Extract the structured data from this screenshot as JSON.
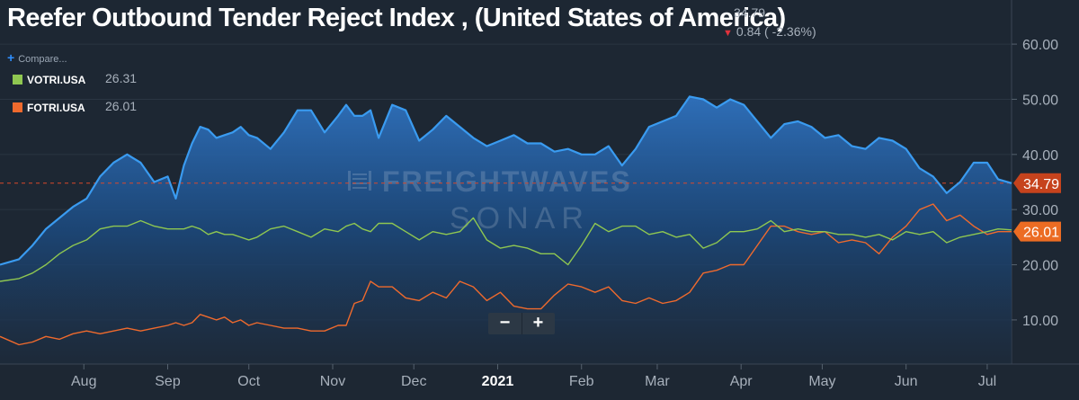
{
  "header": {
    "title": "Reefer Outbound Tender Reject Index , (United States of America)",
    "price": "34.79",
    "change": "0.84 ( -2.36%)"
  },
  "compare_label": "Compare...",
  "watermark": {
    "line1": "FREIGHTWAVES",
    "line2": "SONAR"
  },
  "zoom": {
    "minus": "−",
    "plus": "+"
  },
  "legend": [
    {
      "name": "VOTRI.USA",
      "value": "26.31",
      "color": "#8fc751"
    },
    {
      "name": "FOTRI.USA",
      "value": "26.01",
      "color": "#ef6a2d"
    }
  ],
  "colors": {
    "main": "#3a9bf0",
    "votri": "#8fc751",
    "fotri": "#ef6a2d",
    "badge": "#c6431d",
    "badge2": "#ec6c23"
  },
  "chart_data": {
    "type": "line",
    "ylim": [
      2,
      68
    ],
    "yticks": [
      10,
      20,
      30,
      40,
      50,
      60
    ],
    "ytick_labels": [
      "10.00",
      "20.00",
      "30.00",
      "40.00",
      "50.00",
      "60.00"
    ],
    "x_start": "2020-07-01",
    "xlim": [
      "2020-07-01",
      "2021-07-10"
    ],
    "xticks": [
      {
        "date": "2020-08-01",
        "label": "Aug",
        "bold": false
      },
      {
        "date": "2020-09-01",
        "label": "Sep",
        "bold": false
      },
      {
        "date": "2020-10-01",
        "label": "Oct",
        "bold": false
      },
      {
        "date": "2020-11-01",
        "label": "Nov",
        "bold": false
      },
      {
        "date": "2020-12-01",
        "label": "Dec",
        "bold": false
      },
      {
        "date": "2021-01-01",
        "label": "2021",
        "bold": true
      },
      {
        "date": "2021-02-01",
        "label": "Feb",
        "bold": false
      },
      {
        "date": "2021-03-01",
        "label": "Mar",
        "bold": false
      },
      {
        "date": "2021-04-01",
        "label": "Apr",
        "bold": false
      },
      {
        "date": "2021-05-01",
        "label": "May",
        "bold": false
      },
      {
        "date": "2021-06-01",
        "label": "Jun",
        "bold": false
      },
      {
        "date": "2021-07-01",
        "label": "Jul",
        "bold": false
      }
    ],
    "reference_line": {
      "value": 34.79,
      "label": "34.79"
    },
    "end_labels": [
      {
        "value": 34.79,
        "label": "34.79"
      },
      {
        "value": 26.01,
        "label": "26.01"
      }
    ],
    "series": [
      {
        "name": "Reefer Outbound Tender Reject Index",
        "x_days": [
          0,
          7,
          12,
          17,
          22,
          27,
          32,
          37,
          42,
          47,
          52,
          57,
          62,
          65,
          68,
          71,
          74,
          77,
          80,
          83,
          86,
          89,
          92,
          95,
          100,
          105,
          110,
          115,
          120,
          125,
          128,
          131,
          134,
          137,
          140,
          145,
          150,
          155,
          160,
          165,
          170,
          175,
          180,
          185,
          190,
          195,
          200,
          205,
          210,
          215,
          220,
          225,
          230,
          235,
          240,
          245,
          250,
          255,
          260,
          265,
          270,
          275,
          280,
          285,
          290,
          295,
          300,
          305,
          310,
          315,
          320,
          325,
          330,
          335,
          340,
          345,
          350,
          355,
          360,
          365,
          369,
          374
        ],
        "values": [
          20,
          21,
          23.5,
          26.5,
          28.5,
          30.5,
          32,
          36,
          38.5,
          40,
          38.5,
          35,
          36,
          32,
          38,
          42,
          45,
          44.5,
          43,
          43.5,
          44,
          45,
          43.5,
          43,
          41,
          44,
          48,
          48,
          44,
          47,
          49,
          47,
          47,
          48,
          43,
          49,
          48,
          42.5,
          44.5,
          47,
          45,
          43,
          41.5,
          42.5,
          43.5,
          42,
          42,
          40.5,
          41,
          40,
          40,
          41.5,
          38,
          41,
          45,
          46,
          47,
          50.5,
          50,
          48.5,
          50,
          49,
          46,
          43,
          45.5,
          46,
          45,
          43,
          43.5,
          41.5,
          41,
          43,
          42.5,
          41,
          37.5,
          36,
          33,
          35,
          38.5,
          38.5,
          35.5,
          34.79
        ]
      },
      {
        "name": "VOTRI.USA",
        "x_days": [
          0,
          7,
          12,
          17,
          22,
          27,
          32,
          37,
          42,
          47,
          52,
          57,
          62,
          65,
          68,
          71,
          74,
          77,
          80,
          83,
          86,
          89,
          92,
          95,
          100,
          105,
          110,
          115,
          120,
          125,
          128,
          131,
          134,
          137,
          140,
          145,
          150,
          155,
          160,
          165,
          170,
          175,
          180,
          185,
          190,
          195,
          200,
          205,
          210,
          215,
          220,
          225,
          230,
          235,
          240,
          245,
          250,
          255,
          260,
          265,
          270,
          275,
          280,
          285,
          290,
          295,
          300,
          305,
          310,
          315,
          320,
          325,
          330,
          335,
          340,
          345,
          350,
          355,
          360,
          365,
          369,
          374
        ],
        "values": [
          17,
          17.5,
          18.5,
          20,
          22,
          23.5,
          24.5,
          26.5,
          27,
          27,
          28,
          27,
          26.5,
          26.5,
          26.5,
          27,
          26.5,
          25.5,
          26,
          25.5,
          25.5,
          25,
          24.5,
          25,
          26.5,
          27,
          26,
          25,
          26.5,
          26,
          27,
          27.5,
          26.5,
          26,
          27.5,
          27.5,
          26,
          24.5,
          26,
          25.5,
          26,
          28.5,
          24.5,
          23,
          23.5,
          23,
          22,
          22,
          20,
          23.5,
          27.5,
          26,
          27,
          27,
          25.5,
          26,
          25,
          25.5,
          23,
          24,
          26,
          26,
          26.5,
          28,
          26,
          26.5,
          26,
          26,
          25.5,
          25.5,
          25,
          25.5,
          24.5,
          26,
          25.5,
          26,
          24,
          25,
          25.5,
          26,
          26.5,
          26.31
        ]
      },
      {
        "name": "FOTRI.USA",
        "x_days": [
          0,
          7,
          12,
          17,
          22,
          27,
          32,
          37,
          42,
          47,
          52,
          57,
          62,
          65,
          68,
          71,
          74,
          77,
          80,
          83,
          86,
          89,
          92,
          95,
          100,
          105,
          110,
          115,
          120,
          125,
          128,
          131,
          134,
          137,
          140,
          145,
          150,
          155,
          160,
          165,
          170,
          175,
          180,
          185,
          190,
          195,
          200,
          205,
          210,
          215,
          220,
          225,
          230,
          235,
          240,
          245,
          250,
          255,
          260,
          265,
          270,
          275,
          280,
          285,
          290,
          295,
          300,
          305,
          310,
          315,
          320,
          325,
          330,
          335,
          340,
          345,
          350,
          355,
          360,
          365,
          369,
          374
        ],
        "values": [
          7,
          5.5,
          6,
          7,
          6.5,
          7.5,
          8,
          7.5,
          8,
          8.5,
          8,
          8.5,
          9,
          9.5,
          9,
          9.5,
          11,
          10.5,
          10,
          10.5,
          9.5,
          10,
          9,
          9.5,
          9,
          8.5,
          8.5,
          8,
          8,
          9,
          9,
          13,
          13.5,
          17,
          16,
          16,
          14,
          13.5,
          15,
          14,
          17,
          16,
          13.5,
          15,
          12.5,
          12,
          12,
          14.5,
          16.5,
          16,
          15,
          16,
          13.5,
          13,
          14,
          13,
          13.5,
          15,
          18.5,
          19,
          20,
          20,
          23.5,
          27,
          27,
          26,
          25.5,
          26,
          24,
          24.5,
          24,
          22,
          25,
          27,
          30,
          31,
          28,
          29,
          27,
          25.5,
          26,
          26.01
        ]
      }
    ]
  }
}
